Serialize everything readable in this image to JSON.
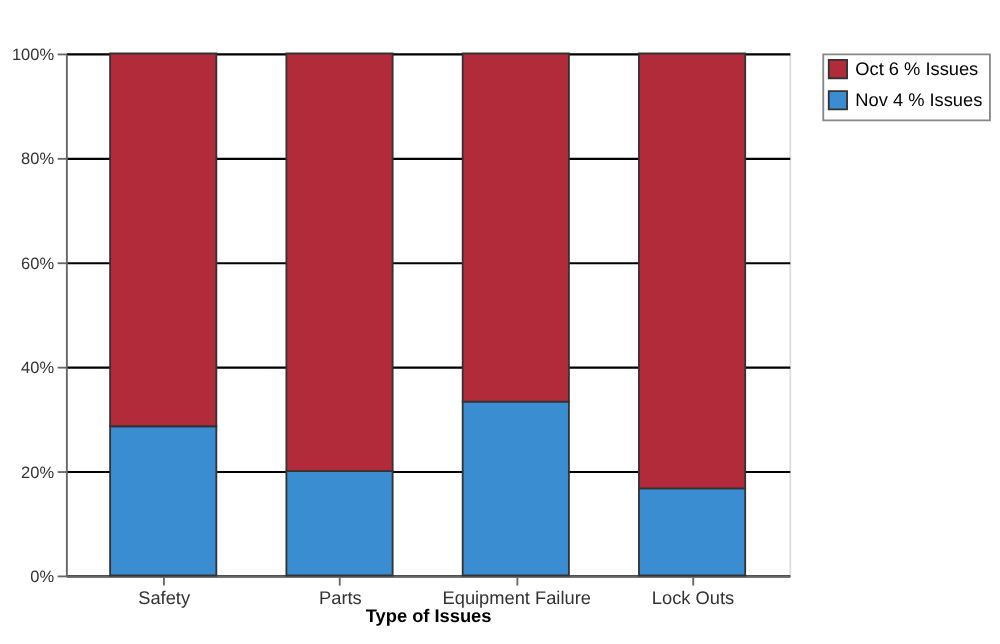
{
  "chart_data": {
    "type": "bar",
    "stacked": true,
    "xlabel": "Type of Issues",
    "categories": [
      "Safety",
      "Parts",
      "Equipment Failure",
      "Lock Outs"
    ],
    "series": [
      {
        "name": "Nov 4 % Issues",
        "color": "#3a8dd0",
        "values": [
          28.6,
          20,
          33.3,
          16.7
        ]
      },
      {
        "name": "Oct 6 % Issues",
        "color": "#b22b3a",
        "values": [
          71.4,
          80,
          66.7,
          83.3
        ]
      }
    ],
    "ylim": [
      0,
      100
    ],
    "yticks": [
      {
        "value": 0,
        "label": "0%"
      },
      {
        "value": 20,
        "label": "20%"
      },
      {
        "value": 40,
        "label": "40%"
      },
      {
        "value": 60,
        "label": "60%"
      },
      {
        "value": 80,
        "label": "80%"
      },
      {
        "value": 100,
        "label": "100%"
      }
    ],
    "grid": "y",
    "legend": "right"
  }
}
